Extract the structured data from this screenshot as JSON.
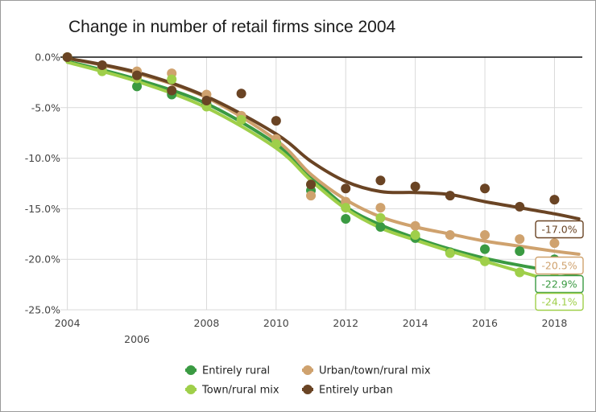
{
  "chart_data": {
    "type": "scatter",
    "title": "Change in number of retail firms since 2004",
    "xlabel": "",
    "ylabel": "",
    "xlim": [
      2003.8,
      2018.8
    ],
    "ylim": [
      -25,
      0
    ],
    "x_ticks_upper": [
      2004,
      2008,
      2010,
      2012,
      2014,
      2016,
      2018
    ],
    "x_ticks_lower": [
      2006
    ],
    "x_tick_labels_upper": [
      "2004",
      "2008",
      "2010",
      "2012",
      "2014",
      "2016",
      "2018"
    ],
    "x_tick_labels_lower": [
      "2006"
    ],
    "y_ticks": [
      0,
      -5,
      -10,
      -15,
      -20,
      -25
    ],
    "y_tick_labels": [
      "0.0%",
      "-5.0%",
      "-10.0%",
      "-15.0%",
      "-20.0%",
      "-25.0%"
    ],
    "grid": true,
    "zero_line": true,
    "legend_position": "bottom-center",
    "series": [
      {
        "name": "Entirely rural",
        "color": "#3a9a42",
        "x": [
          2004,
          2005,
          2006,
          2007,
          2008,
          2009,
          2010,
          2011,
          2012,
          2013,
          2014,
          2015,
          2016,
          2017,
          2018
        ],
        "values": [
          0.0,
          -0.9,
          -2.9,
          -3.7,
          -4.6,
          -6.0,
          -8.4,
          -13.2,
          -16.0,
          -16.8,
          -17.9,
          -19.3,
          -19.0,
          -19.2,
          -20.0
        ],
        "trend_x": [
          2004,
          2006,
          2008,
          2010,
          2011,
          2012,
          2013,
          2014,
          2015,
          2016,
          2017,
          2018,
          2018.7
        ],
        "trend": [
          -0.4,
          -2.2,
          -4.6,
          -8.6,
          -11.8,
          -14.8,
          -16.6,
          -17.9,
          -19.0,
          -19.9,
          -20.6,
          -21.2,
          -21.7
        ],
        "end_label": "-22.9%"
      },
      {
        "name": "Urban/town/rural mix",
        "color": "#cfa26e",
        "x": [
          2004,
          2005,
          2006,
          2007,
          2008,
          2009,
          2010,
          2011,
          2012,
          2013,
          2014,
          2015,
          2016,
          2017,
          2018
        ],
        "values": [
          0.0,
          -1.0,
          -1.4,
          -1.6,
          -3.7,
          -5.8,
          -8.1,
          -13.7,
          -14.3,
          -14.9,
          -16.7,
          -17.6,
          -17.6,
          -18.0,
          -18.4
        ],
        "trend_x": [
          2004,
          2006,
          2008,
          2010,
          2011,
          2012,
          2013,
          2014,
          2015,
          2016,
          2017,
          2018,
          2018.7
        ],
        "trend": [
          -0.1,
          -1.6,
          -4.0,
          -8.2,
          -11.6,
          -14.1,
          -15.8,
          -16.8,
          -17.5,
          -18.2,
          -18.7,
          -19.2,
          -19.5
        ],
        "end_label": "-20.5%"
      },
      {
        "name": "Town/rural mix",
        "color": "#9fcf4a",
        "x": [
          2004,
          2005,
          2006,
          2007,
          2008,
          2009,
          2010,
          2011,
          2012,
          2013,
          2014,
          2015,
          2016,
          2017,
          2018
        ],
        "values": [
          0.0,
          -1.4,
          -2.1,
          -2.2,
          -4.9,
          -6.2,
          -8.6,
          -12.6,
          -14.9,
          -15.9,
          -17.6,
          -19.4,
          -20.2,
          -21.3,
          -21.8
        ],
        "trend_x": [
          2004,
          2006,
          2008,
          2010,
          2011,
          2012,
          2013,
          2014,
          2015,
          2016,
          2017,
          2018,
          2018.7
        ],
        "trend": [
          -0.5,
          -2.4,
          -5.0,
          -9.0,
          -12.2,
          -15.0,
          -16.9,
          -18.1,
          -19.2,
          -20.2,
          -21.2,
          -22.2,
          -22.9
        ],
        "end_label": "-24.1%"
      },
      {
        "name": "Entirely urban",
        "color": "#6a4424",
        "x": [
          2004,
          2005,
          2006,
          2007,
          2008,
          2009,
          2010,
          2011,
          2012,
          2013,
          2014,
          2015,
          2016,
          2017,
          2018
        ],
        "values": [
          0.0,
          -0.8,
          -1.8,
          -3.3,
          -4.3,
          -3.6,
          -6.3,
          -12.6,
          -13.0,
          -12.2,
          -12.8,
          -13.7,
          -13.0,
          -14.8,
          -14.1
        ],
        "trend_x": [
          2004,
          2006,
          2008,
          2010,
          2011,
          2012,
          2013,
          2014,
          2015,
          2016,
          2017,
          2018,
          2018.7
        ],
        "trend": [
          -0.1,
          -1.5,
          -3.9,
          -7.6,
          -10.3,
          -12.3,
          -13.3,
          -13.4,
          -13.6,
          -14.3,
          -14.9,
          -15.5,
          -16.0
        ],
        "end_label": "-17.0%"
      }
    ]
  },
  "legend": {
    "items": [
      {
        "label": "Entirely rural",
        "color": "#3a9a42"
      },
      {
        "label": "Urban/town/rural mix",
        "color": "#cfa26e"
      },
      {
        "label": "Town/rural mix",
        "color": "#9fcf4a"
      },
      {
        "label": "Entirely urban",
        "color": "#6a4424"
      }
    ]
  }
}
